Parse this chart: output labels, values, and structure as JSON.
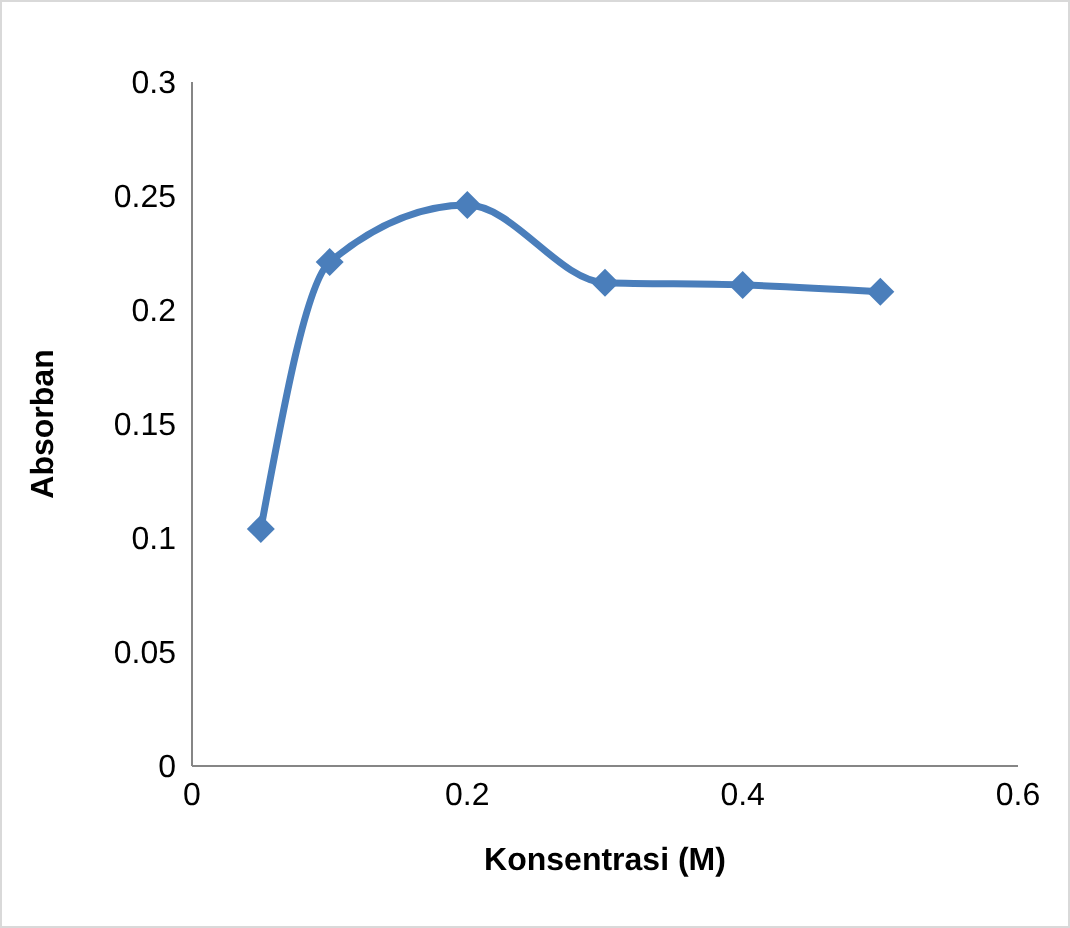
{
  "chart_data": {
    "type": "line",
    "xlabel": "Konsentrasi (M)",
    "ylabel": "Absorban",
    "x": [
      0.05,
      0.1,
      0.2,
      0.3,
      0.4,
      0.5
    ],
    "series": [
      {
        "color": "#4a7ebb",
        "values": [
          0.104,
          0.221,
          0.246,
          0.212,
          0.211,
          0.208
        ]
      }
    ],
    "xlim": [
      0,
      0.6
    ],
    "xticks": [
      0,
      0.2,
      0.4,
      0.6
    ],
    "ylim": [
      0,
      0.3
    ],
    "yticks": [
      0,
      0.05,
      0.1,
      0.15,
      0.2,
      0.25,
      0.3
    ],
    "marker": "diamond",
    "line_style": "solid",
    "grid": false,
    "legend": false
  }
}
